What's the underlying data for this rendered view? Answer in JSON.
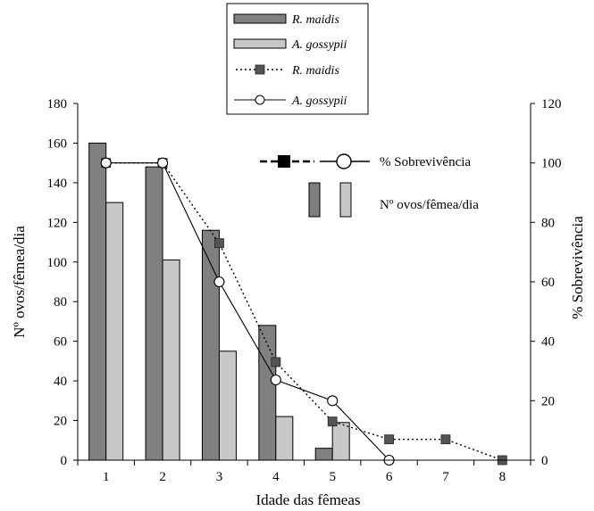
{
  "chart_data": {
    "type": "bar",
    "categories": [
      "1",
      "2",
      "3",
      "4",
      "5",
      "6",
      "7",
      "8"
    ],
    "xlabel": "Idade das fêmeas",
    "ylabel": "Nº ovos/fêmea/dia",
    "y2label": "% Sobrevivência",
    "ylim": [
      0,
      180
    ],
    "y2lim": [
      0,
      120
    ],
    "yticks": [
      0,
      20,
      40,
      60,
      80,
      100,
      120,
      140,
      160,
      180
    ],
    "y2ticks": [
      0,
      20,
      40,
      60,
      80,
      100,
      120
    ],
    "grid": false,
    "bar_series": [
      {
        "name": "R. maidis",
        "color": "#808080",
        "values": [
          160,
          148,
          116,
          68,
          6,
          null,
          null,
          null
        ]
      },
      {
        "name": "A. gossypii",
        "color": "#c8c8c8",
        "values": [
          130,
          101,
          55,
          22,
          19,
          null,
          null,
          null
        ]
      }
    ],
    "line_series": [
      {
        "name": "R. maidis",
        "axis": "right",
        "style": "dotted",
        "marker": "square",
        "color": "#555555",
        "values": [
          100,
          100,
          73,
          33,
          13,
          7,
          7,
          0
        ]
      },
      {
        "name": "A. gossypii",
        "axis": "right",
        "style": "solid",
        "marker": "open-circle",
        "color": "#000000",
        "values": [
          100,
          100,
          60,
          27,
          20,
          0,
          null,
          null
        ]
      }
    ],
    "legend": {
      "placement": "top-center",
      "entries": [
        "R. maidis",
        "A. gossypii",
        "R. maidis",
        "A. gossypii"
      ]
    },
    "inner_legend": {
      "placement": "top-right",
      "survival_label": "% Sobrevivência",
      "eggs_label": "Nº ovos/fêmea/dia"
    }
  }
}
